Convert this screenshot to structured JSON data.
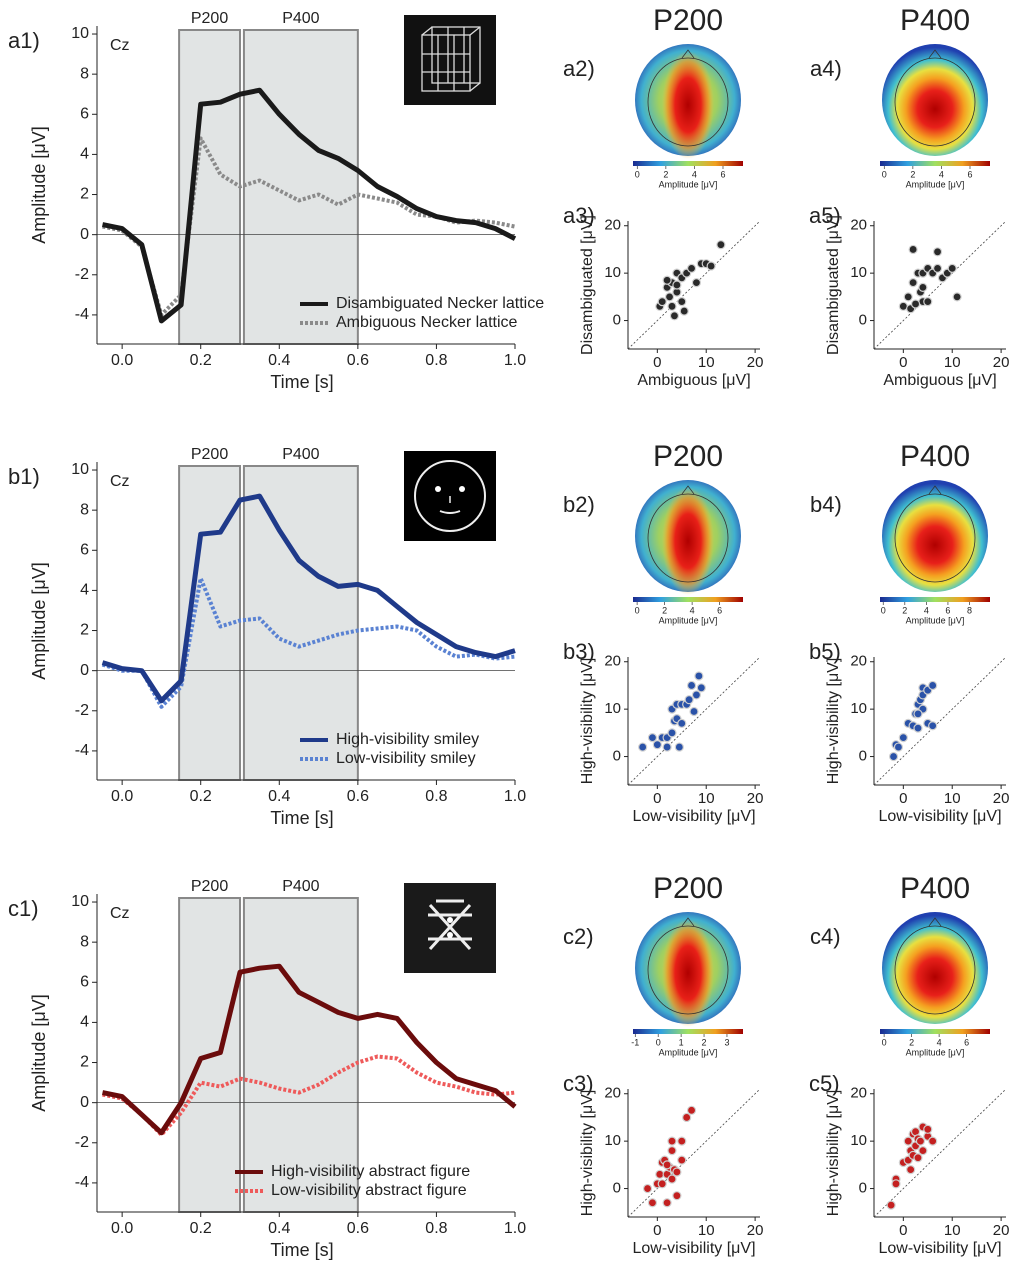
{
  "chart_data": [
    {
      "type": "line",
      "panel_label": "a1)",
      "annotation": "Cz",
      "xlabel": "Time [s]",
      "ylabel": "Amplitude [μV]",
      "x": [
        -0.05,
        0,
        0.05,
        0.1,
        0.15,
        0.2,
        0.25,
        0.3,
        0.35,
        0.4,
        0.45,
        0.5,
        0.55,
        0.6,
        0.65,
        0.7,
        0.75,
        0.8,
        0.85,
        0.9,
        0.95,
        1.0
      ],
      "series": [
        {
          "name": "Disambiguated Necker lattice",
          "color": "#1a1a1a",
          "dashed": false,
          "values": [
            0.5,
            0.3,
            -0.5,
            -4.3,
            -3.5,
            6.5,
            6.6,
            7.0,
            7.2,
            6.0,
            5.0,
            4.2,
            3.8,
            3.2,
            2.4,
            1.9,
            1.3,
            0.9,
            0.7,
            0.6,
            0.3,
            -0.2
          ]
        },
        {
          "name": "Ambiguous Necker lattice",
          "color": "#8a8a8a",
          "dashed": true,
          "values": [
            0.4,
            0.2,
            -0.6,
            -4.0,
            -3.0,
            4.8,
            3.0,
            2.4,
            2.7,
            2.2,
            1.7,
            2.0,
            1.5,
            2.0,
            1.8,
            1.6,
            1.0,
            0.9,
            0.6,
            0.7,
            0.6,
            0.4
          ]
        }
      ],
      "xlim": [
        -0.064,
        1.0
      ],
      "ylim": [
        -5.45,
        10.4
      ],
      "xticks": [
        {
          "value": 0,
          "label": "0.0"
        },
        0.2,
        0.4,
        0.6,
        0.8,
        {
          "value": 1,
          "label": "1.0"
        }
      ],
      "yticks": [
        -4,
        -2,
        0,
        2,
        4,
        6,
        8,
        10
      ],
      "windows": [
        {
          "label": "P200",
          "range": [
            0.145,
            0.3
          ]
        },
        {
          "label": "P400",
          "range": [
            0.31,
            0.6
          ]
        }
      ]
    },
    {
      "type": "topomap",
      "panel_label": "a2)",
      "title": "P200",
      "map": "elongated",
      "colorbar": {
        "label": "Amplitude [μV]",
        "lim": [
          -0.3,
          7.4
        ],
        "ticks": [
          0,
          2,
          4,
          6
        ]
      }
    },
    {
      "type": "scatter",
      "panel_label": "a3)",
      "xlabel": "Ambiguous [μV]",
      "ylabel": "Disambiguated [μV]",
      "color": "#2a2a2a",
      "x": [
        0.5,
        1,
        2,
        2.5,
        3,
        3,
        3.5,
        4,
        4,
        5,
        5,
        5.5,
        6,
        7,
        8,
        9,
        10,
        11,
        13,
        2,
        4
      ],
      "y": [
        3,
        4,
        7,
        5,
        8,
        3,
        1,
        10,
        6,
        4,
        9,
        2,
        10,
        11,
        8,
        12,
        12,
        11.5,
        16,
        8.5,
        7.5
      ],
      "xlim": [
        -6,
        21
      ],
      "ylim": [
        -6,
        21
      ],
      "xticks": [
        0,
        10,
        20
      ],
      "yticks": [
        0,
        10,
        20
      ]
    },
    {
      "type": "topomap",
      "panel_label": "a4)",
      "title": "P400",
      "map": "round",
      "colorbar": {
        "label": "Amplitude [μV]",
        "lim": [
          -0.3,
          7.4
        ],
        "ticks": [
          0,
          2,
          4,
          6
        ]
      }
    },
    {
      "type": "scatter",
      "panel_label": "a5)",
      "xlabel": "Ambiguous [μV]",
      "ylabel": "Disambiguated [μV]",
      "color": "#2a2a2a",
      "x": [
        0,
        1,
        1.5,
        2,
        2,
        3,
        3.5,
        4,
        4,
        5,
        5,
        6,
        7,
        7,
        8,
        9,
        10,
        11,
        2.5,
        4
      ],
      "y": [
        3,
        5,
        2.5,
        15,
        8,
        10,
        6,
        10,
        4,
        11,
        4,
        10,
        14.5,
        11,
        9,
        10,
        11,
        5,
        3.5,
        7
      ],
      "xlim": [
        -6,
        21
      ],
      "ylim": [
        -6,
        21
      ],
      "xticks": [
        0,
        10,
        20
      ],
      "yticks": [
        0,
        10,
        20
      ]
    },
    {
      "type": "line",
      "panel_label": "b1)",
      "annotation": "Cz",
      "xlabel": "Time [s]",
      "ylabel": "Amplitude [μV]",
      "x": [
        -0.05,
        0,
        0.05,
        0.1,
        0.15,
        0.2,
        0.25,
        0.3,
        0.35,
        0.4,
        0.45,
        0.5,
        0.55,
        0.6,
        0.65,
        0.7,
        0.75,
        0.8,
        0.85,
        0.9,
        0.95,
        1.0
      ],
      "series": [
        {
          "name": "High-visibility smiley",
          "color": "#1f3a8a",
          "dashed": false,
          "values": [
            0.4,
            0.1,
            0.0,
            -1.5,
            -0.5,
            6.8,
            6.9,
            8.5,
            8.7,
            7.0,
            5.5,
            4.7,
            4.2,
            4.3,
            4.0,
            3.2,
            2.4,
            1.8,
            1.2,
            0.9,
            0.7,
            1.0
          ]
        },
        {
          "name": "Low-visibility smiley",
          "color": "#5a82d2",
          "dashed": true,
          "values": [
            0.3,
            0.0,
            0.0,
            -1.8,
            -0.8,
            4.6,
            2.2,
            2.5,
            2.6,
            1.6,
            1.2,
            1.5,
            1.8,
            2.0,
            2.1,
            2.2,
            2.0,
            1.2,
            0.7,
            0.8,
            0.6,
            0.7
          ]
        }
      ],
      "xlim": [
        -0.064,
        1.0
      ],
      "ylim": [
        -5.45,
        10.4
      ],
      "xticks": [
        {
          "value": 0,
          "label": "0.0"
        },
        0.2,
        0.4,
        0.6,
        0.8,
        {
          "value": 1,
          "label": "1.0"
        }
      ],
      "yticks": [
        -4,
        -2,
        0,
        2,
        4,
        6,
        8,
        10
      ],
      "windows": [
        {
          "label": "P200",
          "range": [
            0.145,
            0.3
          ]
        },
        {
          "label": "P400",
          "range": [
            0.31,
            0.6
          ]
        }
      ]
    },
    {
      "type": "topomap",
      "panel_label": "b2)",
      "title": "P200",
      "map": "elongated",
      "colorbar": {
        "label": "Amplitude [μV]",
        "lim": [
          -0.3,
          7.7
        ],
        "ticks": [
          0,
          2,
          4,
          6
        ]
      }
    },
    {
      "type": "scatter",
      "panel_label": "b3)",
      "xlabel": "Low-visibility [μV]",
      "ylabel": "High-visibility [μV]",
      "color": "#2a52a8",
      "x": [
        -3,
        -1,
        0,
        1,
        2,
        2,
        3,
        3,
        3.5,
        4,
        4,
        4.5,
        5,
        5,
        6,
        6.5,
        7,
        7.5,
        8,
        8.5,
        9
      ],
      "y": [
        2,
        4,
        2.5,
        4,
        4,
        2,
        10,
        5,
        7.5,
        8,
        11,
        2,
        7,
        11,
        11,
        12,
        15,
        9.5,
        13,
        17,
        14.5
      ],
      "xlim": [
        -6,
        21
      ],
      "ylim": [
        -6,
        21
      ],
      "xticks": [
        0,
        10,
        20
      ],
      "yticks": [
        0,
        10,
        20
      ]
    },
    {
      "type": "topomap",
      "panel_label": "b4)",
      "title": "P400",
      "map": "round",
      "colorbar": {
        "label": "Amplitude [μV]",
        "lim": [
          -0.3,
          9.9
        ],
        "ticks": [
          0,
          2,
          4,
          6,
          8
        ]
      }
    },
    {
      "type": "scatter",
      "panel_label": "b5)",
      "xlabel": "Low-visibility [μV]",
      "ylabel": "High-visibility [μV]",
      "color": "#2a52a8",
      "x": [
        -2,
        -1.5,
        -1,
        0,
        1,
        2,
        2.5,
        3,
        3,
        3.5,
        4,
        4,
        4,
        5,
        5,
        6,
        6,
        3
      ],
      "y": [
        0,
        2.5,
        2,
        4,
        7,
        6.5,
        9,
        6,
        11,
        12,
        14.5,
        10,
        13,
        7,
        14,
        15,
        6.5,
        9
      ],
      "xlim": [
        -6,
        21
      ],
      "ylim": [
        -6,
        21
      ],
      "xticks": [
        0,
        10,
        20
      ],
      "yticks": [
        0,
        10,
        20
      ]
    },
    {
      "type": "line",
      "panel_label": "c1)",
      "annotation": "Cz",
      "xlabel": "Time [s]",
      "ylabel": "Amplitude [μV]",
      "x": [
        -0.05,
        0,
        0.05,
        0.1,
        0.15,
        0.2,
        0.25,
        0.3,
        0.35,
        0.4,
        0.45,
        0.5,
        0.55,
        0.6,
        0.65,
        0.7,
        0.75,
        0.8,
        0.85,
        0.9,
        0.95,
        1.0
      ],
      "series": [
        {
          "name": "High-visibility abstract figure",
          "color": "#6b0c0c",
          "dashed": false,
          "values": [
            0.5,
            0.3,
            -0.6,
            -1.5,
            0.0,
            2.2,
            2.5,
            6.5,
            6.7,
            6.8,
            5.5,
            5.0,
            4.5,
            4.2,
            4.4,
            4.2,
            3.0,
            2.0,
            1.2,
            0.9,
            0.6,
            -0.2
          ]
        },
        {
          "name": "Low-visibility abstract figure",
          "color": "#ee5a5a",
          "dashed": true,
          "values": [
            0.4,
            0.2,
            -0.6,
            -1.6,
            -0.5,
            1.0,
            0.8,
            1.2,
            1.0,
            0.7,
            0.5,
            0.9,
            1.5,
            2.0,
            2.3,
            2.2,
            1.5,
            1.0,
            0.8,
            0.5,
            0.4,
            0.5
          ]
        }
      ],
      "xlim": [
        -0.064,
        1.0
      ],
      "ylim": [
        -5.45,
        10.4
      ],
      "xticks": [
        {
          "value": 0,
          "label": "0.0"
        },
        0.2,
        0.4,
        0.6,
        0.8,
        {
          "value": 1,
          "label": "1.0"
        }
      ],
      "yticks": [
        -4,
        -2,
        0,
        2,
        4,
        6,
        8,
        10
      ],
      "windows": [
        {
          "label": "P200",
          "range": [
            0.145,
            0.3
          ]
        },
        {
          "label": "P400",
          "range": [
            0.31,
            0.6
          ]
        }
      ]
    },
    {
      "type": "topomap",
      "panel_label": "c2)",
      "title": "P200",
      "map": "elongated",
      "colorbar": {
        "label": "Amplitude [μV]",
        "lim": [
          -1.1,
          3.7
        ],
        "ticks": [
          -1,
          0,
          1,
          2,
          3
        ]
      }
    },
    {
      "type": "scatter",
      "panel_label": "c3)",
      "xlabel": "Low-visibility [μV]",
      "ylabel": "High-visibility [μV]",
      "color": "#c42020",
      "x": [
        -2,
        -1,
        0,
        0.5,
        1,
        1,
        1.5,
        2,
        2,
        2.5,
        3,
        3,
        3,
        3.5,
        4,
        4,
        5,
        5,
        6,
        7,
        2
      ],
      "y": [
        0,
        -3,
        1,
        3,
        5.5,
        1,
        6,
        3,
        -3,
        4.5,
        2,
        8,
        10,
        4,
        -1.5,
        3.5,
        10,
        6,
        15,
        16.5,
        5
      ],
      "xlim": [
        -6,
        21
      ],
      "ylim": [
        -6,
        21
      ],
      "xticks": [
        0,
        10,
        20
      ],
      "yticks": [
        0,
        10,
        20
      ]
    },
    {
      "type": "topomap",
      "panel_label": "c4)",
      "title": "P400",
      "map": "round",
      "colorbar": {
        "label": "Amplitude [μV]",
        "lim": [
          -0.3,
          7.7
        ],
        "ticks": [
          0,
          2,
          4,
          6
        ]
      }
    },
    {
      "type": "scatter",
      "panel_label": "c5)",
      "xlabel": "Low-visibility [μV]",
      "ylabel": "High-visibility [μV]",
      "color": "#c42020",
      "x": [
        -2.5,
        -1.5,
        -1.5,
        0,
        1,
        1,
        1.5,
        1.5,
        2,
        2,
        2.5,
        2.5,
        3,
        3,
        3.5,
        4,
        4,
        5,
        5,
        6
      ],
      "y": [
        -3.5,
        2,
        1,
        5.5,
        6,
        10,
        4,
        8,
        11.5,
        7,
        12,
        9,
        10.5,
        6.5,
        10,
        13,
        8,
        11,
        12.5,
        10
      ],
      "xlim": [
        -6,
        21
      ],
      "ylim": [
        -6,
        21
      ],
      "xticks": [
        0,
        10,
        20
      ],
      "yticks": [
        0,
        10,
        20
      ]
    }
  ]
}
